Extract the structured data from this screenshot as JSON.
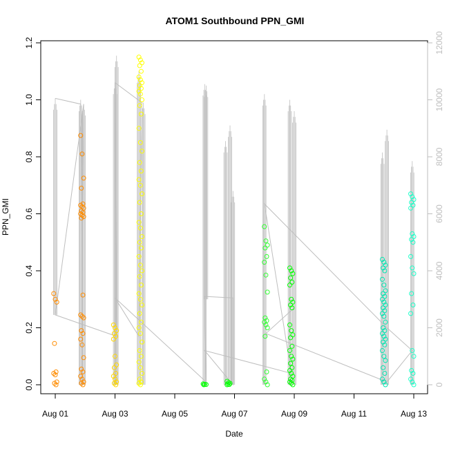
{
  "chart_data": {
    "type": "scatter",
    "title": "ATOM1 Southbound PPN_GMI",
    "xlabel": "Date",
    "ylabel": "PPN_GMI",
    "x_ticks": [
      "Aug 01",
      "Aug 03",
      "Aug 05",
      "Aug 07",
      "Aug 09",
      "Aug 11",
      "Aug 13"
    ],
    "x_tick_days": [
      1,
      3,
      5,
      7,
      9,
      11,
      13
    ],
    "xlim_days": [
      0.5,
      13.5
    ],
    "y_ticks": [
      "0.0",
      "0.2",
      "0.4",
      "0.6",
      "0.8",
      "1.0",
      "1.2"
    ],
    "ylim": [
      0,
      1.2
    ],
    "y2_ticks": [
      "0",
      "2000",
      "4000",
      "6000",
      "8000",
      "10000",
      "12000"
    ],
    "y2lim": [
      0,
      12000
    ],
    "colors": {
      "axis": "#000000",
      "secondary_axis": "#bebebe",
      "trace_line": "#bebebe"
    },
    "grid": false,
    "points": [
      {
        "day": 1.0,
        "color": "#ff8c00",
        "values": [
          0.32,
          0.3,
          0.29,
          0.145,
          0.045,
          0.04,
          0.035,
          0.01,
          0.005,
          0.0
        ]
      },
      {
        "day": 1.9,
        "color": "#ff8c00",
        "values": [
          0.875,
          0.81,
          0.725,
          0.69,
          0.635,
          0.63,
          0.625,
          0.62,
          0.61,
          0.605,
          0.6,
          0.595,
          0.59,
          0.585,
          0.315,
          0.245,
          0.24,
          0.235,
          0.19,
          0.18,
          0.16,
          0.14,
          0.095,
          0.055,
          0.045,
          0.03,
          0.02,
          0.01,
          0.005,
          0.0
        ]
      },
      {
        "day": 3.0,
        "color": "#ffd700",
        "values": [
          0.21,
          0.2,
          0.19,
          0.18,
          0.17,
          0.16,
          0.1,
          0.07,
          0.06,
          0.04,
          0.03,
          0.02,
          0.01,
          0.005,
          0.0
        ]
      },
      {
        "day": 3.85,
        "color": "#ffff00",
        "values": [
          1.15,
          1.14,
          1.13,
          1.12,
          1.1,
          1.08,
          1.07,
          1.06,
          1.05,
          1.04,
          1.03,
          1.02,
          1.0,
          0.98,
          0.95,
          0.9,
          0.85,
          0.82,
          0.78,
          0.75,
          0.72,
          0.7,
          0.67,
          0.64,
          0.6,
          0.57,
          0.55,
          0.52,
          0.5,
          0.48,
          0.45,
          0.42,
          0.4,
          0.38,
          0.35,
          0.32,
          0.3,
          0.28,
          0.25,
          0.22,
          0.2,
          0.18,
          0.15,
          0.12,
          0.1,
          0.08,
          0.06,
          0.04,
          0.02,
          0.01,
          0.005,
          0.0
        ]
      },
      {
        "day": 6.0,
        "color": "#00ff00",
        "values": [
          0.003,
          0.002,
          0.001,
          0.0
        ]
      },
      {
        "day": 6.8,
        "color": "#00ff00",
        "values": [
          0.012,
          0.008,
          0.005,
          0.003,
          0.001,
          0.0
        ]
      },
      {
        "day": 8.05,
        "color": "#33ff33",
        "values": [
          0.555,
          0.505,
          0.49,
          0.48,
          0.45,
          0.43,
          0.385,
          0.325,
          0.235,
          0.225,
          0.22,
          0.21,
          0.2,
          0.17,
          0.045,
          0.02,
          0.01,
          0.0
        ]
      },
      {
        "day": 8.9,
        "color": "#00ff00",
        "values": [
          0.41,
          0.4,
          0.39,
          0.375,
          0.36,
          0.35,
          0.3,
          0.29,
          0.28,
          0.27,
          0.21,
          0.19,
          0.175,
          0.165,
          0.135,
          0.12,
          0.1,
          0.09,
          0.075,
          0.06,
          0.05,
          0.04,
          0.03,
          0.02,
          0.015,
          0.01,
          0.005,
          0.0
        ]
      },
      {
        "day": 12.0,
        "color": "#00e5b0",
        "values": [
          0.44,
          0.43,
          0.42,
          0.41,
          0.4,
          0.37,
          0.35,
          0.33,
          0.32,
          0.31,
          0.3,
          0.29,
          0.28,
          0.27,
          0.26,
          0.25,
          0.24,
          0.22,
          0.2,
          0.19,
          0.18,
          0.17,
          0.16,
          0.15,
          0.14,
          0.12,
          0.1,
          0.085,
          0.06,
          0.04,
          0.02,
          0.01,
          0.0
        ]
      },
      {
        "day": 12.95,
        "color": "#1affc8",
        "values": [
          0.67,
          0.66,
          0.65,
          0.64,
          0.63,
          0.62,
          0.53,
          0.52,
          0.51,
          0.5,
          0.45,
          0.41,
          0.39,
          0.32,
          0.28,
          0.25,
          0.12,
          0.1,
          0.05,
          0.04,
          0.02,
          0.01,
          0.0
        ]
      }
    ],
    "trace_spikes": [
      {
        "day": 1.0,
        "top": 1.005,
        "bottom": 0.245
      },
      {
        "day": 1.85,
        "top": 1.0,
        "bottom": 0.0
      },
      {
        "day": 1.95,
        "top": 0.985,
        "bottom": 0.0
      },
      {
        "day": 3.0,
        "top": 1.06,
        "bottom": 0.0
      },
      {
        "day": 3.05,
        "top": 1.155,
        "bottom": 0.0
      },
      {
        "day": 3.8,
        "top": 1.1,
        "bottom": 0.0
      },
      {
        "day": 3.95,
        "top": 0.99,
        "bottom": 0.0
      },
      {
        "day": 6.0,
        "top": 1.055,
        "bottom": 0.0
      },
      {
        "day": 6.05,
        "top": 1.05,
        "bottom": 0.3
      },
      {
        "day": 6.7,
        "top": 0.855,
        "bottom": 0.0
      },
      {
        "day": 6.85,
        "top": 0.91,
        "bottom": 0.0
      },
      {
        "day": 6.95,
        "top": 0.68,
        "bottom": 0.0
      },
      {
        "day": 8.0,
        "top": 1.02,
        "bottom": 0.0
      },
      {
        "day": 8.85,
        "top": 1.0,
        "bottom": 0.0
      },
      {
        "day": 9.0,
        "top": 0.96,
        "bottom": 0.0
      },
      {
        "day": 11.95,
        "top": 0.815,
        "bottom": 0.0
      },
      {
        "day": 12.1,
        "top": 0.895,
        "bottom": 0.0
      },
      {
        "day": 12.95,
        "top": 0.785,
        "bottom": 0.0
      }
    ],
    "trace_path": [
      [
        1.0,
        1.005
      ],
      [
        1.85,
        0.985
      ],
      [
        1.9,
        0.4
      ],
      [
        1.95,
        0.985
      ],
      [
        1.0,
        0.245
      ],
      [
        3.05,
        0.17
      ],
      [
        3.0,
        1.06
      ],
      [
        3.9,
        0.99
      ],
      [
        3.8,
        0.17
      ],
      [
        3.0,
        0.305
      ],
      [
        6.05,
        0.01
      ],
      [
        6.0,
        0.31
      ],
      [
        6.95,
        0.305
      ],
      [
        6.95,
        0.0
      ],
      [
        6.0,
        0.12
      ],
      [
        8.9,
        0.04
      ],
      [
        8.0,
        0.635
      ],
      [
        12.1,
        0.2
      ],
      [
        12.95,
        0.12
      ],
      [
        12.1,
        0.01
      ],
      [
        8.05,
        0.18
      ],
      [
        9.0,
        0.27
      ]
    ]
  }
}
